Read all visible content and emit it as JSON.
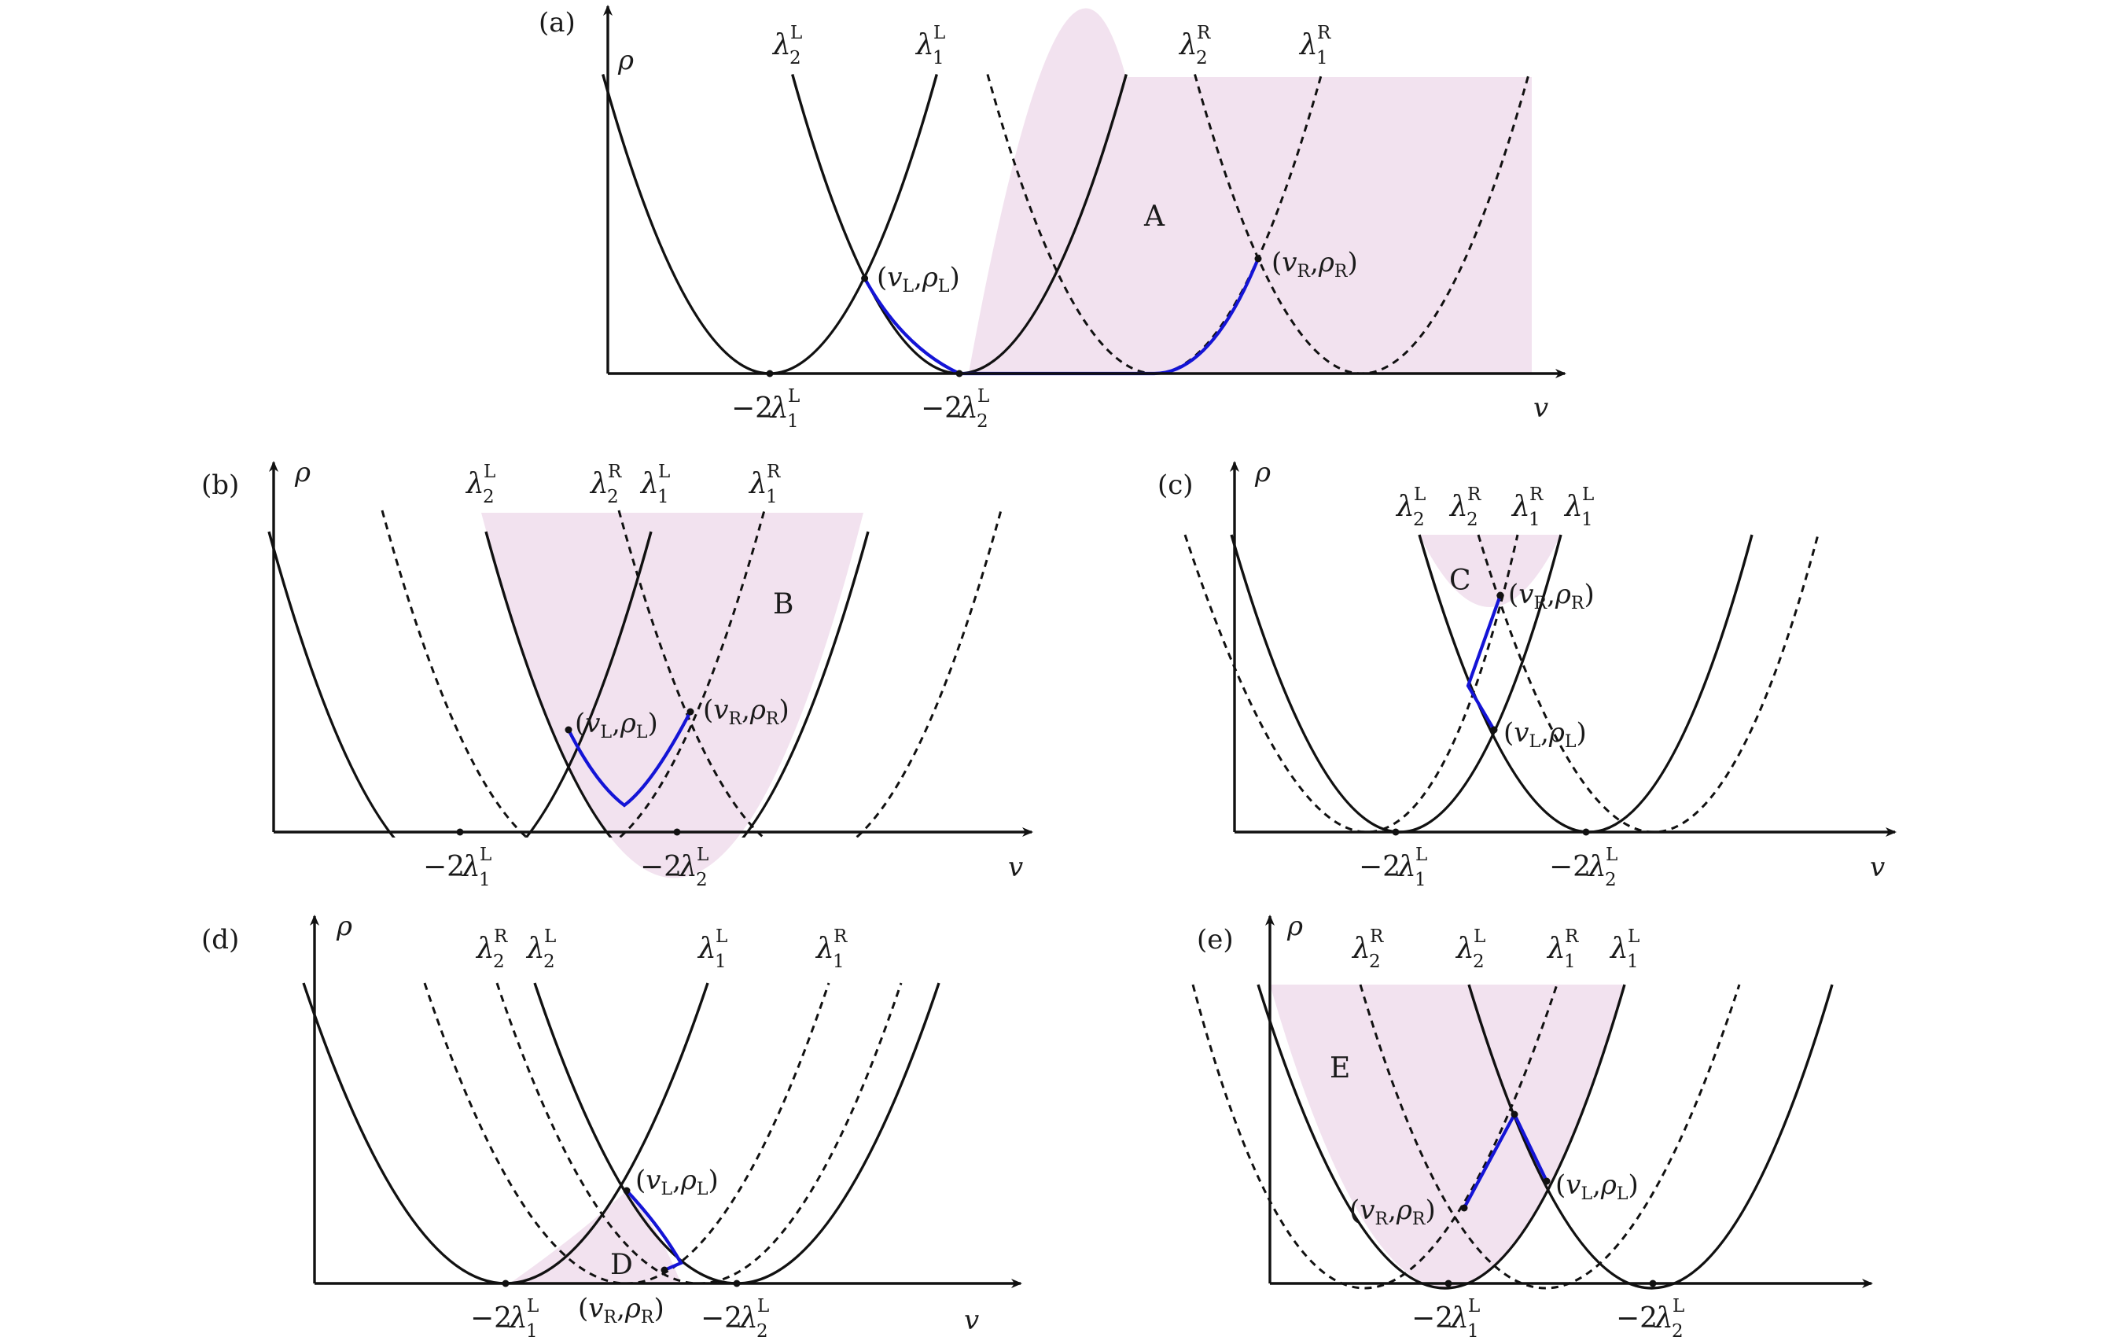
{
  "colors": {
    "region_fill": "#f2e2ef",
    "curve": "#111111",
    "solution_path": "#1414d6"
  },
  "axes": {
    "x": "v",
    "y": "ρ"
  },
  "panels": [
    {
      "id": "a",
      "label": "(a)",
      "region_label": "A",
      "curve_labels": [
        {
          "sym": "λ",
          "sub": "2",
          "sup": "L"
        },
        {
          "sym": "λ",
          "sub": "1",
          "sup": "L"
        },
        {
          "sym": "λ",
          "sub": "2",
          "sup": "R"
        },
        {
          "sym": "λ",
          "sub": "1",
          "sup": "R"
        }
      ],
      "tick_labels": [
        {
          "coef": "−2",
          "sym": "λ",
          "sub": "1",
          "sup": "L"
        },
        {
          "coef": "−2",
          "sym": "λ",
          "sub": "2",
          "sup": "L"
        }
      ],
      "point_labels": [
        {
          "open": "(",
          "v": "v",
          "vsub": "L",
          "sep": ",",
          "r": "ρ",
          "rsub": "L",
          "close": ")"
        },
        {
          "open": "(",
          "v": "v",
          "vsub": "R",
          "sep": ",",
          "r": "ρ",
          "rsub": "R",
          "close": ")"
        }
      ]
    },
    {
      "id": "b",
      "label": "(b)",
      "region_label": "B",
      "curve_labels": [
        {
          "sym": "λ",
          "sub": "2",
          "sup": "L"
        },
        {
          "sym": "λ",
          "sub": "2",
          "sup": "R"
        },
        {
          "sym": "λ",
          "sub": "1",
          "sup": "L"
        },
        {
          "sym": "λ",
          "sub": "1",
          "sup": "R"
        }
      ],
      "tick_labels": [
        {
          "coef": "−2",
          "sym": "λ",
          "sub": "1",
          "sup": "L"
        },
        {
          "coef": "−2",
          "sym": "λ",
          "sub": "2",
          "sup": "L"
        }
      ],
      "point_labels": [
        {
          "open": "(",
          "v": "v",
          "vsub": "L",
          "sep": ",",
          "r": "ρ",
          "rsub": "L",
          "close": ")"
        },
        {
          "open": "(",
          "v": "v",
          "vsub": "R",
          "sep": ",",
          "r": "ρ",
          "rsub": "R",
          "close": ")"
        }
      ]
    },
    {
      "id": "c",
      "label": "(c)",
      "region_label": "C",
      "curve_labels": [
        {
          "sym": "λ",
          "sub": "2",
          "sup": "L"
        },
        {
          "sym": "λ",
          "sub": "2",
          "sup": "R"
        },
        {
          "sym": "λ",
          "sub": "1",
          "sup": "R"
        },
        {
          "sym": "λ",
          "sub": "1",
          "sup": "L"
        }
      ],
      "tick_labels": [
        {
          "coef": "−2",
          "sym": "λ",
          "sub": "1",
          "sup": "L"
        },
        {
          "coef": "−2",
          "sym": "λ",
          "sub": "2",
          "sup": "L"
        }
      ],
      "point_labels": [
        {
          "open": "(",
          "v": "v",
          "vsub": "R",
          "sep": ",",
          "r": "ρ",
          "rsub": "R",
          "close": ")"
        },
        {
          "open": "(",
          "v": "v",
          "vsub": "L",
          "sep": ",",
          "r": "ρ",
          "rsub": "L",
          "close": ")"
        }
      ]
    },
    {
      "id": "d",
      "label": "(d)",
      "region_label": "D",
      "curve_labels": [
        {
          "sym": "λ",
          "sub": "2",
          "sup": "R"
        },
        {
          "sym": "λ",
          "sub": "2",
          "sup": "L"
        },
        {
          "sym": "λ",
          "sub": "1",
          "sup": "L"
        },
        {
          "sym": "λ",
          "sub": "1",
          "sup": "R"
        }
      ],
      "tick_labels": [
        {
          "coef": "−2",
          "sym": "λ",
          "sub": "1",
          "sup": "L"
        },
        {
          "coef": "−2",
          "sym": "λ",
          "sub": "2",
          "sup": "L"
        }
      ],
      "point_labels": [
        {
          "open": "(",
          "v": "v",
          "vsub": "L",
          "sep": ",",
          "r": "ρ",
          "rsub": "L",
          "close": ")"
        },
        {
          "open": "(",
          "v": "v",
          "vsub": "R",
          "sep": ",",
          "r": "ρ",
          "rsub": "R",
          "close": ")"
        }
      ]
    },
    {
      "id": "e",
      "label": "(e)",
      "region_label": "E",
      "curve_labels": [
        {
          "sym": "λ",
          "sub": "2",
          "sup": "R"
        },
        {
          "sym": "λ",
          "sub": "2",
          "sup": "L"
        },
        {
          "sym": "λ",
          "sub": "1",
          "sup": "R"
        },
        {
          "sym": "λ",
          "sub": "1",
          "sup": "L"
        }
      ],
      "tick_labels": [
        {
          "coef": "−2",
          "sym": "λ",
          "sub": "1",
          "sup": "L"
        },
        {
          "coef": "−2",
          "sym": "λ",
          "sub": "2",
          "sup": "L"
        }
      ],
      "point_labels": [
        {
          "open": "(",
          "v": "v",
          "vsub": "R",
          "sep": ",",
          "r": "ρ",
          "rsub": "R",
          "close": ")"
        },
        {
          "open": "(",
          "v": "v",
          "vsub": "L",
          "sep": ",",
          "r": "ρ",
          "rsub": "L",
          "close": ")"
        }
      ]
    }
  ]
}
